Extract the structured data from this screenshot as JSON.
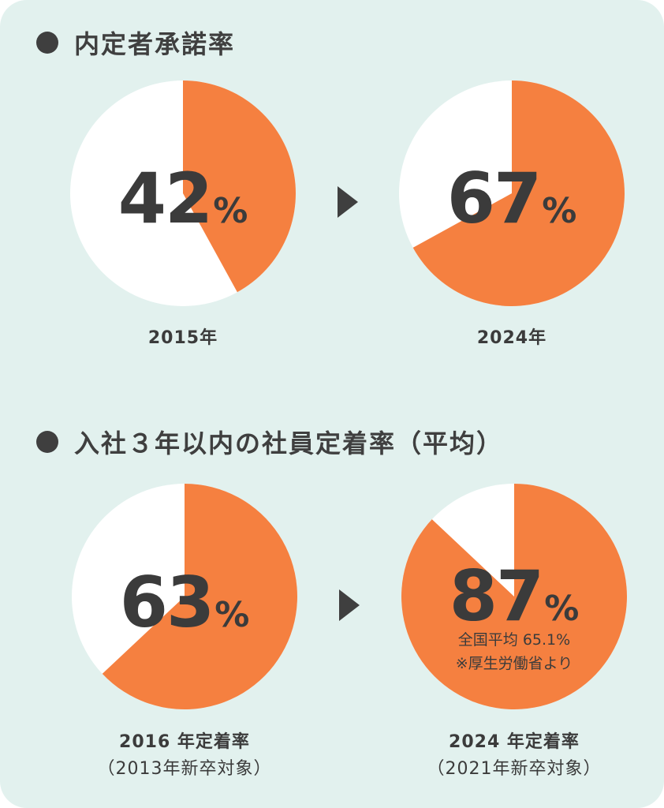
{
  "colors": {
    "filled": "#f58040",
    "empty": "#ffffff",
    "text": "#3b3b3b",
    "background": "#e2f1ee"
  },
  "sections": [
    {
      "title": "内定者承諾率",
      "bullet_icon": "circle-bullet-icon",
      "arrow_icon": "triangle-right-icon",
      "items": [
        {
          "value": "42",
          "unit": "%",
          "caption": "2015年"
        },
        {
          "value": "67",
          "unit": "%",
          "caption": "2024年"
        }
      ]
    },
    {
      "title": "入社３年以内の社員定着率（平均）",
      "bullet_icon": "circle-bullet-icon",
      "arrow_icon": "triangle-right-icon",
      "items": [
        {
          "value": "63",
          "unit": "%",
          "caption": "2016 年定着率",
          "subcaption": "（2013年新卒対象）"
        },
        {
          "value": "87",
          "unit": "%",
          "caption": "2024 年定着率",
          "subcaption": "（2021年新卒対象）",
          "note_1": "全国平均 65.1%",
          "note_2": "※厚生労働省より"
        }
      ]
    }
  ],
  "chart_data": [
    {
      "type": "pie",
      "title": "内定者承諾率",
      "categories": [
        "2015年"
      ],
      "values": [
        42
      ],
      "unit": "%"
    },
    {
      "type": "pie",
      "title": "内定者承諾率",
      "categories": [
        "2024年"
      ],
      "values": [
        67
      ],
      "unit": "%"
    },
    {
      "type": "pie",
      "title": "入社３年以内の社員定着率（平均）",
      "categories": [
        "2016 年定着率"
      ],
      "values": [
        63
      ],
      "unit": "%"
    },
    {
      "type": "pie",
      "title": "入社３年以内の社員定着率（平均）",
      "categories": [
        "2024 年定着率"
      ],
      "values": [
        87
      ],
      "unit": "%"
    }
  ]
}
